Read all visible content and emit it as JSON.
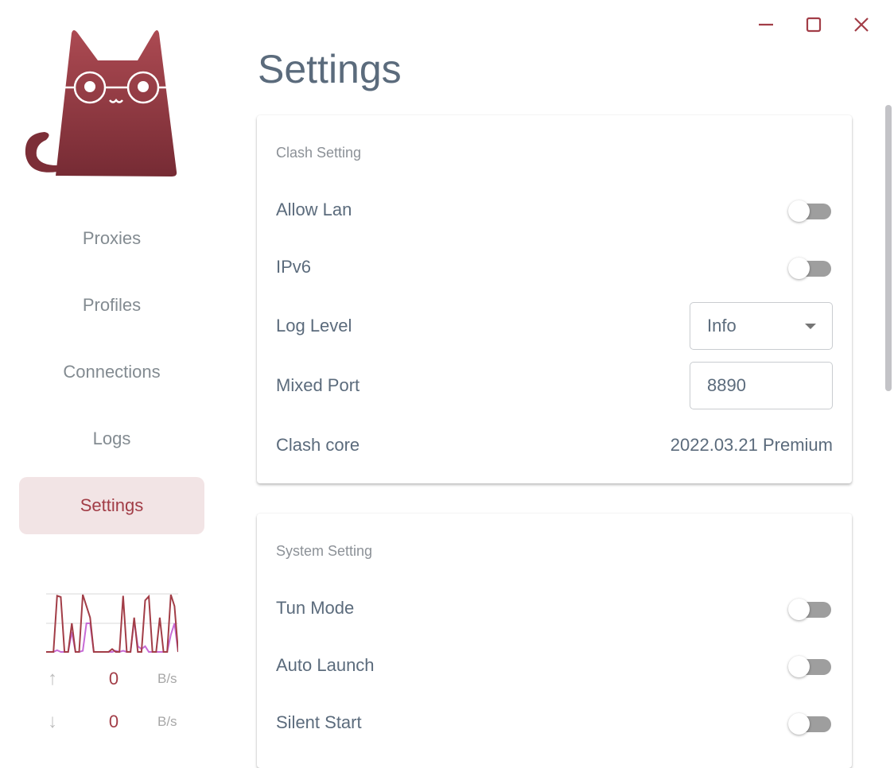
{
  "window": {
    "controls": [
      {
        "name": "minimize",
        "icon": "minimize-icon"
      },
      {
        "name": "maximize",
        "icon": "maximize-icon"
      },
      {
        "name": "close",
        "icon": "close-icon"
      }
    ],
    "accent": "#a23d47"
  },
  "sidebar": {
    "items": [
      {
        "label": "Proxies"
      },
      {
        "label": "Profiles"
      },
      {
        "label": "Connections"
      },
      {
        "label": "Logs"
      },
      {
        "label": "Settings",
        "active": true
      }
    ],
    "traffic": {
      "upload": {
        "icon": "arrow-up-icon",
        "value": "0",
        "unit": "B/s"
      },
      "download": {
        "icon": "arrow-down-icon",
        "value": "0",
        "unit": "B/s"
      },
      "series_colors": {
        "upload": "#a23d47",
        "download": "#c76bd6"
      },
      "upload_series": [
        0,
        0,
        0,
        0.98,
        0.96,
        0,
        0,
        0.5,
        0,
        0,
        1,
        0.8,
        0.6,
        0,
        0,
        0,
        0,
        0,
        0.05,
        0,
        0,
        0.98,
        0,
        0,
        0.6,
        0,
        0,
        0.9,
        0.97,
        0,
        0,
        0.6,
        0,
        0,
        1,
        0.8,
        0
      ],
      "download_series": [
        0,
        0,
        0,
        0.03,
        0,
        0,
        0,
        0.35,
        0,
        0,
        0.02,
        0.5,
        0.5,
        0,
        0,
        0,
        0,
        0,
        0,
        0.02,
        0,
        0.02,
        0,
        0,
        0.55,
        0.1,
        0.05,
        0.1,
        0,
        0,
        0,
        0,
        0,
        0,
        0.3,
        0.5,
        0
      ]
    }
  },
  "main": {
    "title": "Settings",
    "clash": {
      "title": "Clash Setting",
      "allow_lan": {
        "label": "Allow Lan",
        "on": false
      },
      "ipv6": {
        "label": "IPv6",
        "on": false
      },
      "log_level": {
        "label": "Log Level",
        "value": "Info"
      },
      "mixed_port": {
        "label": "Mixed Port",
        "value": "8890"
      },
      "core": {
        "label": "Clash core",
        "value": "2022.03.21 Premium"
      }
    },
    "system": {
      "title": "System Setting",
      "tun": {
        "label": "Tun Mode",
        "on": false
      },
      "auto_launch": {
        "label": "Auto Launch",
        "on": false
      },
      "silent_start": {
        "label": "Silent Start",
        "on": false
      }
    }
  }
}
